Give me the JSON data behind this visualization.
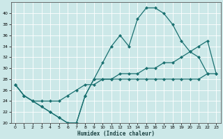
{
  "xlabel": "Humidex (Indice chaleur)",
  "bg_color": "#cce8e8",
  "line_color": "#1a7070",
  "grid_color": "#ffffff",
  "xlim": [
    -0.5,
    23.5
  ],
  "ylim": [
    20,
    42
  ],
  "yticks": [
    20,
    22,
    24,
    26,
    28,
    30,
    32,
    34,
    36,
    38,
    40
  ],
  "xticks": [
    0,
    1,
    2,
    3,
    4,
    5,
    6,
    7,
    8,
    9,
    10,
    11,
    12,
    13,
    14,
    15,
    16,
    17,
    18,
    19,
    20,
    21,
    22,
    23
  ],
  "curve1_x": [
    0,
    1,
    2,
    3,
    4,
    5,
    6,
    7,
    8,
    9,
    10,
    11,
    12,
    13,
    14,
    15,
    16,
    17,
    18,
    19,
    20,
    21,
    22
  ],
  "curve1_y": [
    27,
    25,
    24,
    23,
    22,
    21,
    20,
    20,
    25,
    28,
    31,
    34,
    36,
    34,
    39,
    41,
    41,
    40,
    38,
    35,
    33,
    32,
    29
  ],
  "curve2_x": [
    0,
    1,
    2,
    3,
    4,
    5,
    6,
    7,
    8,
    9,
    10,
    11,
    12,
    13,
    14,
    15,
    16,
    17,
    18,
    19,
    20,
    21,
    22,
    23
  ],
  "curve2_y": [
    27,
    25,
    24,
    24,
    24,
    24,
    25,
    26,
    27,
    27,
    28,
    28,
    29,
    29,
    29,
    30,
    30,
    31,
    31,
    32,
    33,
    34,
    35,
    29
  ],
  "curve3_x": [
    0,
    1,
    2,
    3,
    4,
    5,
    6,
    7,
    8,
    9,
    10,
    11,
    12,
    13,
    14,
    15,
    16,
    17,
    18,
    19,
    20,
    21,
    22,
    23
  ],
  "curve3_y": [
    27,
    25,
    24,
    23,
    22,
    21,
    20,
    20,
    25,
    28,
    28,
    28,
    28,
    28,
    28,
    28,
    28,
    28,
    28,
    28,
    28,
    28,
    29,
    29
  ]
}
